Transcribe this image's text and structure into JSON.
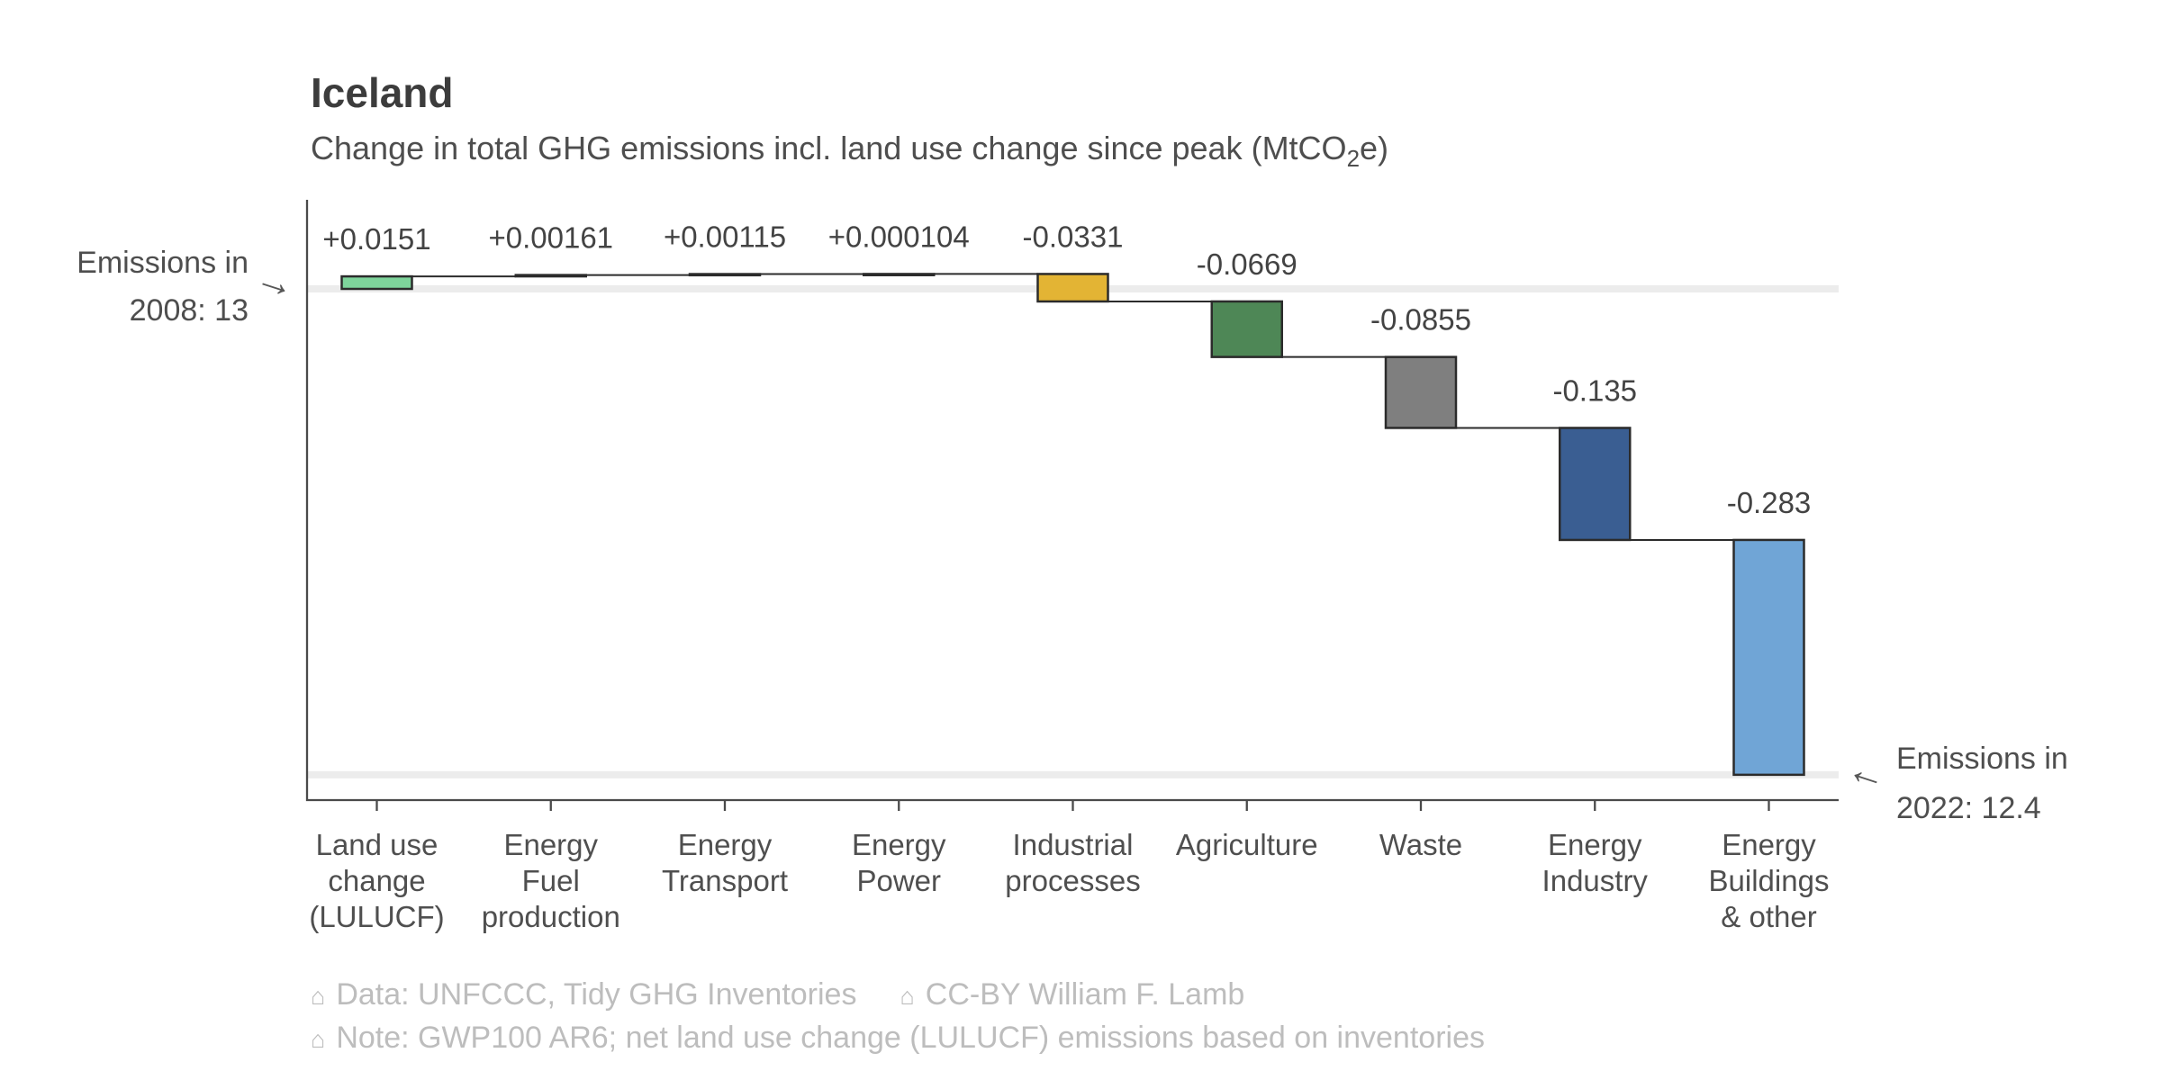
{
  "header": {
    "title": "Iceland",
    "subtitle_pre": "Change in total GHG emissions incl. land use change since peak (MtCO",
    "subtitle_sub": "2",
    "subtitle_post": "e)"
  },
  "annotations": {
    "start_line1": "Emissions in",
    "start_line2": "2008: 13",
    "start_arrow": "→",
    "end_line1": "Emissions in",
    "end_line2": "2022: 12.4",
    "end_arrow": "←"
  },
  "footer": {
    "icon": "⌂",
    "data_label": "Data: UNFCCC, Tidy GHG Inventories",
    "license_label": "CC-BY William F. Lamb",
    "note_label": "Note: GWP100 AR6; net land use change (LULUCF) emissions based on inventories"
  },
  "chart_data": {
    "type": "bar",
    "subtype": "waterfall",
    "title": "Iceland",
    "subtitle": "Change in total GHG emissions incl. land use change since peak (MtCO2e)",
    "start_value": 13,
    "end_value": 12.4,
    "start_label": "Emissions in 2008: 13",
    "end_label": "Emissions in 2022: 12.4",
    "categories": [
      "Land use change (LULUCF)",
      "Energy Fuel production",
      "Energy Transport",
      "Energy Power",
      "Industrial processes",
      "Agriculture",
      "Waste",
      "Energy Industry",
      "Energy Buildings & other"
    ],
    "category_lines": [
      [
        "Land use",
        "change",
        "(LULUCF)"
      ],
      [
        "Energy",
        "Fuel",
        "production"
      ],
      [
        "Energy",
        "Transport"
      ],
      [
        "Energy",
        "Power"
      ],
      [
        "Industrial",
        "processes"
      ],
      [
        "Agriculture"
      ],
      [
        "Waste"
      ],
      [
        "Energy",
        "Industry"
      ],
      [
        "Energy",
        "Buildings",
        "& other"
      ]
    ],
    "values": [
      0.0151,
      0.00161,
      0.00115,
      0.000104,
      -0.0331,
      -0.0669,
      -0.0855,
      -0.135,
      -0.283
    ],
    "value_labels": [
      "+0.0151",
      "+0.00161",
      "+0.00115",
      "+0.000104",
      "-0.0331",
      "-0.0669",
      "-0.0855",
      "-0.135",
      "-0.283"
    ],
    "bar_colors": [
      "#7ed49b",
      "#9e9e9e",
      "#9e9e9e",
      "#9e9e9e",
      "#e3b434",
      "#4e8756",
      "#7f7f7f",
      "#3a5e92",
      "#70a5d6"
    ],
    "bar_border_color": "#2b2b2b",
    "connector_color": "#2b2b2b",
    "level_band_color": "#ececec",
    "axis_color": "#4a4a4a",
    "value_label_color": "#434343",
    "category_label_color": "#4f4f4f",
    "grid": false,
    "legend": false,
    "ylim_note": "y axis unlabeled; reference bands at start level 13 and end level 12.414"
  }
}
